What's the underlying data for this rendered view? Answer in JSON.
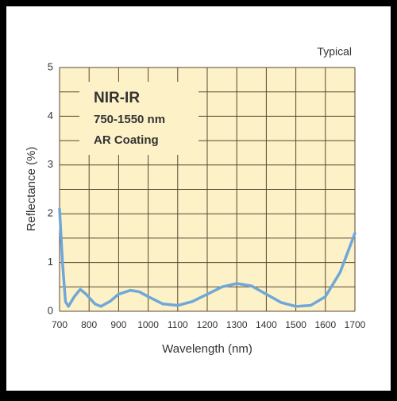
{
  "chart_data": {
    "type": "line",
    "corner_label": "Typical",
    "annotations": [
      "NIR-IR",
      "750-1550 nm",
      "AR Coating"
    ],
    "x_label": "Wavelength (nm)",
    "y_label": "Reflectance (%)",
    "x": [
      700,
      710,
      720,
      730,
      750,
      770,
      790,
      820,
      840,
      870,
      900,
      940,
      970,
      1000,
      1050,
      1100,
      1150,
      1200,
      1250,
      1300,
      1350,
      1400,
      1450,
      1500,
      1550,
      1600,
      1650,
      1700
    ],
    "values": [
      2.1,
      1.0,
      0.2,
      0.1,
      0.3,
      0.45,
      0.35,
      0.15,
      0.1,
      0.2,
      0.35,
      0.43,
      0.4,
      0.3,
      0.15,
      0.12,
      0.2,
      0.35,
      0.5,
      0.57,
      0.52,
      0.35,
      0.18,
      0.1,
      0.12,
      0.3,
      0.8,
      1.6
    ],
    "color": "#6fa8d8",
    "xlim": [
      700,
      1700
    ],
    "ylim": [
      0,
      5
    ],
    "xticks": [
      700,
      800,
      900,
      1000,
      1100,
      1200,
      1300,
      1400,
      1500,
      1600,
      1700
    ],
    "yticks": [
      0,
      1,
      2,
      3,
      4,
      5
    ],
    "y_minor_grid": [
      0.5,
      1.5,
      2.5,
      3.5,
      4.5
    ],
    "grid": true
  }
}
